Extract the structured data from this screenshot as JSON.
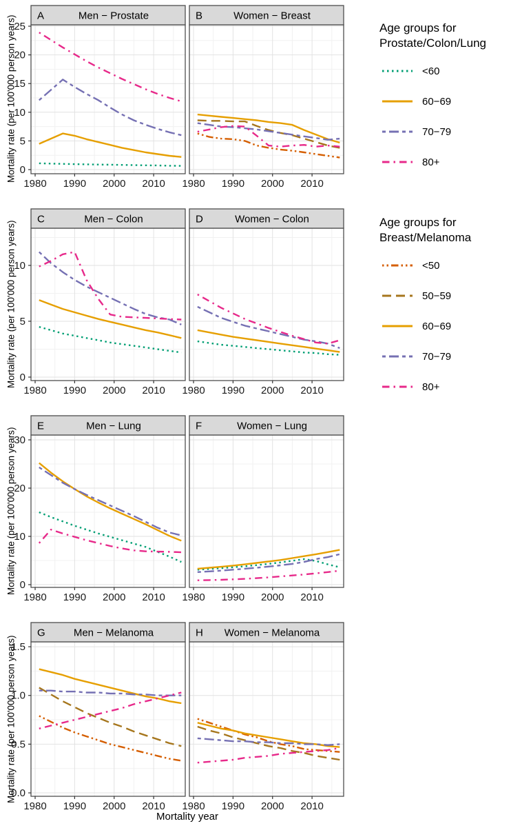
{
  "figure": {
    "x_axis_title": "Mortality year",
    "y_axis_title": "Mortality rate (per 100'000 person years)"
  },
  "palette": {
    "<60": {
      "color": "#009E73",
      "pattern": "dotted"
    },
    "<50": {
      "color": "#D55E00",
      "pattern": "dashdotdot"
    },
    "50−59": {
      "color": "#A6761D",
      "pattern": "longdash"
    },
    "60−69": {
      "color": "#E69F00",
      "pattern": "solid"
    },
    "70−79": {
      "color": "#7570B3",
      "pattern": "twodash"
    },
    "80+": {
      "color": "#E7298A",
      "pattern": "dotdash"
    }
  },
  "legends": [
    {
      "title": "Age groups for\nProstate/Colon/Lung",
      "items": [
        {
          "label": "<60"
        },
        {
          "label": "60−69"
        },
        {
          "label": "70−79"
        },
        {
          "label": "80+"
        }
      ]
    },
    {
      "title": "Age groups for\nBreast/Melanoma",
      "items": [
        {
          "label": "<50"
        },
        {
          "label": "50−59"
        },
        {
          "label": "60−69"
        },
        {
          "label": "70−79"
        },
        {
          "label": "80+"
        }
      ]
    }
  ],
  "chart_data": {
    "type": "line",
    "x": [
      1981,
      1984,
      1987,
      1990,
      1993,
      1996,
      1999,
      2002,
      2005,
      2008,
      2011,
      2014,
      2017
    ],
    "xlim": [
      1978.95,
      2018.0
    ],
    "x_ticks": [
      1980,
      1990,
      2000,
      2010
    ],
    "x_minor_ticks": [
      1985,
      1995,
      2005,
      2015
    ],
    "panels": [
      {
        "label": "A",
        "title": "Men − Prostate",
        "row": 0,
        "col": 0,
        "ylim": [
          -0.72,
          25.24
        ],
        "yticks": [
          0,
          5,
          10,
          15,
          20,
          25
        ],
        "ytick_labels": [
          "0",
          "5",
          "10",
          "15",
          "20",
          "25"
        ],
        "yminor": [
          2.5,
          7.5,
          12.5,
          17.5,
          22.5
        ],
        "series": [
          {
            "name": "<60",
            "values": [
              1.1,
              1.05,
              1.0,
              0.95,
              0.92,
              0.88,
              0.85,
              0.82,
              0.78,
              0.75,
              0.72,
              0.68,
              0.65
            ]
          },
          {
            "name": "60−69",
            "values": [
              4.5,
              5.4,
              6.3,
              5.9,
              5.3,
              4.8,
              4.3,
              3.8,
              3.4,
              3.0,
              2.7,
              2.4,
              2.2
            ]
          },
          {
            "name": "70−79",
            "values": [
              12.1,
              13.9,
              15.7,
              14.4,
              13.2,
              12.1,
              10.8,
              9.6,
              8.6,
              7.8,
              7.1,
              6.5,
              6.0
            ]
          },
          {
            "name": "80+",
            "values": [
              23.9,
              22.6,
              21.3,
              20.1,
              18.9,
              17.8,
              16.8,
              15.8,
              14.9,
              14.0,
              13.2,
              12.5,
              11.9
            ]
          }
        ]
      },
      {
        "label": "B",
        "title": "Women − Breast",
        "row": 0,
        "col": 1,
        "ylim": [
          -0.72,
          25.24
        ],
        "yticks": [
          0,
          5,
          10,
          15,
          20,
          25
        ],
        "ytick_labels": [
          "0",
          "5",
          "10",
          "15",
          "20",
          "25"
        ],
        "yminor": [
          2.5,
          7.5,
          12.5,
          17.5,
          22.5
        ],
        "series": [
          {
            "name": "<50",
            "values": [
              6.3,
              5.7,
              5.4,
              5.3,
              5.0,
              4.2,
              3.8,
              3.5,
              3.3,
              3.0,
              2.7,
              2.4,
              2.1
            ]
          },
          {
            "name": "50−59",
            "values": [
              8.6,
              8.5,
              8.5,
              8.4,
              8.4,
              7.6,
              6.9,
              6.4,
              6.0,
              5.4,
              4.8,
              4.2,
              3.8
            ]
          },
          {
            "name": "60−69",
            "values": [
              9.6,
              9.4,
              9.2,
              9.0,
              8.8,
              8.6,
              8.3,
              8.1,
              7.8,
              6.9,
              6.1,
              5.3,
              4.7
            ]
          },
          {
            "name": "70−79",
            "values": [
              8.1,
              7.8,
              7.5,
              7.4,
              7.2,
              7.0,
              6.7,
              6.4,
              6.1,
              5.8,
              5.5,
              5.2,
              5.4
            ]
          },
          {
            "name": "80+",
            "values": [
              6.6,
              7.0,
              7.4,
              7.6,
              7.5,
              5.9,
              4.2,
              4.0,
              4.2,
              4.3,
              4.0,
              4.2,
              4.0
            ]
          }
        ]
      },
      {
        "label": "C",
        "title": "Men − Colon",
        "row": 1,
        "col": 0,
        "ylim": [
          -0.31,
          13.33
        ],
        "yticks": [
          0,
          5,
          10
        ],
        "ytick_labels": [
          "0",
          "5",
          "10"
        ],
        "yminor": [
          2.5,
          7.5,
          12.5
        ],
        "series": [
          {
            "name": "<60",
            "values": [
              4.5,
              4.2,
              3.9,
              3.7,
              3.5,
              3.3,
              3.1,
              2.95,
              2.8,
              2.65,
              2.5,
              2.35,
              2.2
            ]
          },
          {
            "name": "60−69",
            "values": [
              6.9,
              6.5,
              6.1,
              5.8,
              5.5,
              5.2,
              4.95,
              4.7,
              4.45,
              4.2,
              4.0,
              3.75,
              3.5
            ]
          },
          {
            "name": "70−79",
            "values": [
              11.2,
              10.2,
              9.4,
              8.7,
              8.1,
              7.6,
              7.1,
              6.6,
              6.1,
              5.65,
              5.35,
              5.15,
              4.7
            ]
          },
          {
            "name": "80+",
            "values": [
              9.9,
              10.4,
              11.0,
              11.2,
              8.7,
              7.0,
              5.6,
              5.4,
              5.35,
              5.3,
              5.25,
              5.2,
              5.15
            ]
          }
        ]
      },
      {
        "label": "D",
        "title": "Women − Colon",
        "row": 1,
        "col": 1,
        "ylim": [
          -0.31,
          13.33
        ],
        "yticks": [
          0,
          5,
          10
        ],
        "ytick_labels": [
          "0",
          "5",
          "10"
        ],
        "yminor": [
          2.5,
          7.5,
          12.5
        ],
        "series": [
          {
            "name": "<60",
            "values": [
              3.2,
              3.05,
              2.9,
              2.8,
              2.7,
              2.6,
              2.5,
              2.4,
              2.3,
              2.2,
              2.15,
              2.05,
              2.0
            ]
          },
          {
            "name": "60−69",
            "values": [
              4.2,
              4.0,
              3.8,
              3.6,
              3.45,
              3.3,
              3.15,
              3.0,
              2.85,
              2.7,
              2.55,
              2.4,
              2.25
            ]
          },
          {
            "name": "70−79",
            "values": [
              6.3,
              5.8,
              5.3,
              4.95,
              4.6,
              4.35,
              4.1,
              3.85,
              3.6,
              3.35,
              3.2,
              3.0,
              2.6
            ]
          },
          {
            "name": "80+",
            "values": [
              7.4,
              6.8,
              6.2,
              5.7,
              5.2,
              4.8,
              4.4,
              4.05,
              3.7,
              3.4,
              3.1,
              3.0,
              3.3
            ]
          }
        ]
      },
      {
        "label": "E",
        "title": "Men − Lung",
        "row": 2,
        "col": 0,
        "ylim": [
          -0.57,
          31.0
        ],
        "yticks": [
          0,
          10,
          20,
          30
        ],
        "ytick_labels": [
          "0",
          "10",
          "20",
          "30"
        ],
        "yminor": [
          5,
          15,
          25
        ],
        "series": [
          {
            "name": "<60",
            "values": [
              15.0,
              14.0,
              13.1,
              12.2,
              11.4,
              10.6,
              9.9,
              9.2,
              8.5,
              7.8,
              6.8,
              5.8,
              4.7
            ]
          },
          {
            "name": "60−69",
            "values": [
              25.2,
              23.2,
              21.4,
              19.8,
              18.3,
              17.0,
              15.8,
              14.7,
              13.6,
              12.5,
              11.3,
              10.1,
              9.1
            ]
          },
          {
            "name": "70−79",
            "values": [
              24.3,
              22.7,
              21.1,
              19.8,
              18.6,
              17.5,
              16.4,
              15.3,
              14.2,
              13.0,
              11.8,
              10.8,
              10.2
            ]
          },
          {
            "name": "80+",
            "values": [
              8.6,
              11.4,
              10.6,
              9.9,
              9.2,
              8.6,
              8.0,
              7.5,
              7.1,
              6.9,
              6.85,
              6.8,
              6.7
            ]
          }
        ]
      },
      {
        "label": "F",
        "title": "Women − Lung",
        "row": 2,
        "col": 1,
        "ylim": [
          -0.57,
          31.0
        ],
        "yticks": [
          0,
          10,
          20,
          30
        ],
        "ytick_labels": [
          "0",
          "10",
          "20",
          "30"
        ],
        "yminor": [
          5,
          15,
          25
        ],
        "series": [
          {
            "name": "<60",
            "values": [
              3.1,
              3.25,
              3.4,
              3.6,
              3.8,
              4.05,
              4.3,
              4.6,
              4.95,
              5.3,
              4.9,
              4.2,
              3.6
            ]
          },
          {
            "name": "60−69",
            "values": [
              3.3,
              3.5,
              3.7,
              3.95,
              4.2,
              4.5,
              4.8,
              5.1,
              5.5,
              5.9,
              6.3,
              6.75,
              7.2
            ]
          },
          {
            "name": "70−79",
            "values": [
              2.6,
              2.75,
              2.9,
              3.1,
              3.3,
              3.5,
              3.75,
              4.0,
              4.3,
              4.7,
              5.3,
              5.7,
              6.3
            ]
          },
          {
            "name": "80+",
            "values": [
              0.9,
              0.95,
              1.0,
              1.1,
              1.2,
              1.35,
              1.5,
              1.7,
              1.9,
              2.1,
              2.35,
              2.6,
              2.9
            ]
          }
        ]
      },
      {
        "label": "G",
        "title": "Men − Melanoma",
        "row": 3,
        "col": 0,
        "ylim": [
          -0.035,
          1.55
        ],
        "yticks": [
          0,
          0.5,
          1.0,
          1.5
        ],
        "ytick_labels": [
          "0.0",
          "0.5",
          "1.0",
          "1.5"
        ],
        "yminor": [
          0.25,
          0.75,
          1.25
        ],
        "series": [
          {
            "name": "<50",
            "values": [
              0.79,
              0.73,
              0.67,
              0.62,
              0.58,
              0.54,
              0.5,
              0.47,
              0.44,
              0.41,
              0.38,
              0.35,
              0.33
            ]
          },
          {
            "name": "50−59",
            "values": [
              1.08,
              1.01,
              0.94,
              0.88,
              0.82,
              0.77,
              0.72,
              0.68,
              0.63,
              0.59,
              0.55,
              0.51,
              0.48
            ]
          },
          {
            "name": "60−69",
            "values": [
              1.27,
              1.24,
              1.21,
              1.17,
              1.14,
              1.11,
              1.08,
              1.05,
              1.02,
              0.99,
              0.97,
              0.94,
              0.92
            ]
          },
          {
            "name": "70−79",
            "values": [
              1.05,
              1.05,
              1.04,
              1.04,
              1.03,
              1.03,
              1.02,
              1.02,
              1.01,
              1.01,
              1.0,
              1.0,
              1.0
            ]
          },
          {
            "name": "80+",
            "values": [
              0.66,
              0.69,
              0.72,
              0.75,
              0.78,
              0.81,
              0.84,
              0.87,
              0.91,
              0.94,
              0.97,
              1.0,
              1.03
            ]
          }
        ]
      },
      {
        "label": "H",
        "title": "Women − Melanoma",
        "row": 3,
        "col": 1,
        "ylim": [
          -0.035,
          1.55
        ],
        "yticks": [
          0,
          0.5,
          1.0,
          1.5
        ],
        "ytick_labels": [
          "0.0",
          "0.5",
          "1.0",
          "1.5"
        ],
        "yminor": [
          0.25,
          0.75,
          1.25
        ],
        "series": [
          {
            "name": "<50",
            "values": [
              0.76,
              0.72,
              0.68,
              0.64,
              0.6,
              0.57,
              0.53,
              0.5,
              0.48,
              0.45,
              0.44,
              0.43,
              0.42
            ]
          },
          {
            "name": "50−59",
            "values": [
              0.68,
              0.64,
              0.61,
              0.57,
              0.54,
              0.51,
              0.48,
              0.46,
              0.43,
              0.41,
              0.38,
              0.36,
              0.34
            ]
          },
          {
            "name": "60−69",
            "values": [
              0.72,
              0.69,
              0.66,
              0.64,
              0.61,
              0.59,
              0.57,
              0.55,
              0.53,
              0.51,
              0.5,
              0.48,
              0.47
            ]
          },
          {
            "name": "70−79",
            "values": [
              0.56,
              0.55,
              0.54,
              0.53,
              0.53,
              0.52,
              0.52,
              0.51,
              0.51,
              0.5,
              0.5,
              0.49,
              0.5
            ]
          },
          {
            "name": "80+",
            "values": [
              0.31,
              0.32,
              0.33,
              0.34,
              0.36,
              0.37,
              0.38,
              0.4,
              0.41,
              0.42,
              0.43,
              0.44,
              0.46
            ]
          }
        ]
      }
    ]
  }
}
